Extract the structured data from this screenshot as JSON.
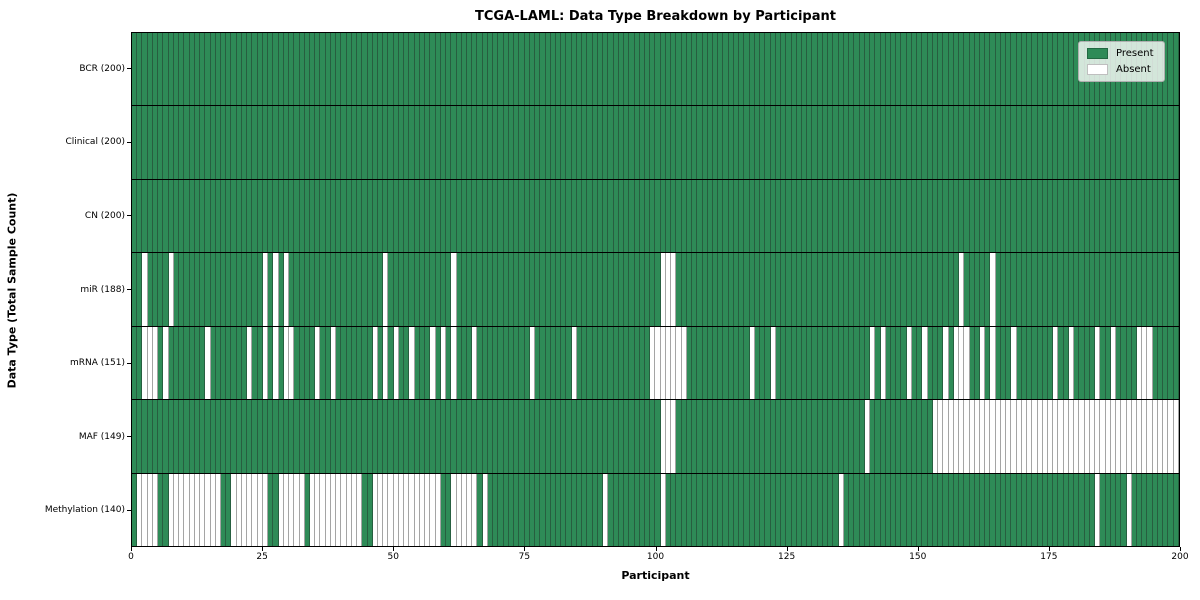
{
  "title": "TCGA-LAML: Data Type Breakdown by Participant",
  "x_axis_title": "Participant",
  "y_axis_title": "Data Type (Total Sample Count)",
  "legend": {
    "present_label": "Present",
    "absent_label": "Absent"
  },
  "colors": {
    "present": "#2e8b57",
    "absent": "#ffffff",
    "cell_edge": "rgba(30,30,30,0.40)",
    "row_divider": "#000000"
  },
  "chart_data": {
    "type": "heatmap",
    "title": "TCGA-LAML: Data Type Breakdown by Participant",
    "xlabel": "Participant",
    "ylabel": "Data Type (Total Sample Count)",
    "n_participants": 200,
    "x_ticks": [
      0,
      25,
      50,
      75,
      100,
      125,
      150,
      175,
      200
    ],
    "xlim": [
      0,
      200
    ],
    "grid": false,
    "legend_entries": [
      "Present",
      "Absent"
    ],
    "legend_position": "upper right",
    "rows": [
      {
        "name": "bcr",
        "label": "BCR (200)",
        "present_total": 200,
        "absent_participants": []
      },
      {
        "name": "clinical",
        "label": "Clinical (200)",
        "present_total": 200,
        "absent_participants": []
      },
      {
        "name": "cn",
        "label": "CN (200)",
        "present_total": 200,
        "absent_participants": []
      },
      {
        "name": "mir",
        "label": "miR (188)",
        "present_total": 188,
        "absent_participants": [
          2,
          7,
          25,
          27,
          29,
          48,
          61,
          101,
          102,
          103,
          158,
          164
        ]
      },
      {
        "name": "mrna",
        "label": "mRNA (151)",
        "present_total": 151,
        "absent_participants": [
          2,
          3,
          4,
          6,
          14,
          22,
          25,
          27,
          29,
          30,
          35,
          38,
          46,
          48,
          50,
          53,
          57,
          59,
          61,
          65,
          76,
          84,
          99,
          100,
          101,
          102,
          103,
          104,
          105,
          118,
          122,
          141,
          143,
          148,
          151,
          155,
          157,
          158,
          159,
          162,
          164,
          168,
          176,
          179,
          184,
          187,
          192,
          193,
          194
        ]
      },
      {
        "name": "maf",
        "label": "MAF (149)",
        "present_total": 149,
        "absent_participants": [
          101,
          102,
          103,
          140,
          153,
          154,
          155,
          156,
          157,
          158,
          159,
          160,
          161,
          162,
          163,
          164,
          165,
          166,
          167,
          168,
          169,
          170,
          171,
          172,
          173,
          174,
          175,
          176,
          177,
          178,
          179,
          180,
          181,
          182,
          183,
          184,
          185,
          186,
          187,
          188,
          189,
          190,
          191,
          192,
          193,
          194,
          195,
          196,
          197,
          198,
          199
        ]
      },
      {
        "name": "methylation",
        "label": "Methylation (140)",
        "present_total": 140,
        "absent_participants": [
          1,
          2,
          3,
          4,
          7,
          8,
          9,
          10,
          11,
          12,
          13,
          14,
          15,
          16,
          19,
          20,
          21,
          22,
          23,
          24,
          25,
          28,
          29,
          30,
          31,
          32,
          34,
          35,
          36,
          37,
          38,
          39,
          40,
          41,
          42,
          43,
          46,
          47,
          48,
          49,
          50,
          51,
          52,
          53,
          54,
          55,
          56,
          57,
          58,
          61,
          62,
          63,
          64,
          65,
          67,
          90,
          101,
          135,
          184,
          190
        ]
      }
    ]
  }
}
